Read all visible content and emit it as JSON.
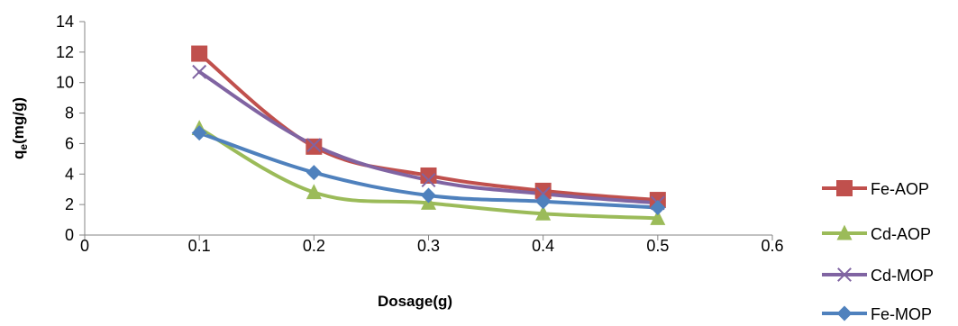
{
  "chart_data": {
    "type": "line",
    "title": "",
    "xlabel": "Dosage(g)",
    "ylabel_main": "q",
    "ylabel_sub": "e",
    "ylabel_rest": "(mg/g)",
    "xlim": [
      0,
      0.6
    ],
    "ylim": [
      0,
      14
    ],
    "x_ticks": [
      0,
      0.1,
      0.2,
      0.3,
      0.4,
      0.5,
      0.6
    ],
    "x_tick_labels": [
      "0",
      "0.1",
      "0.2",
      "0.3",
      "0.4",
      "0.5",
      "0.6"
    ],
    "y_ticks": [
      0,
      2,
      4,
      6,
      8,
      10,
      12,
      14
    ],
    "y_tick_labels": [
      "0",
      "2",
      "4",
      "6",
      "8",
      "10",
      "12",
      "14"
    ],
    "grid": false,
    "legend_position": "right",
    "x": [
      0.1,
      0.2,
      0.3,
      0.4,
      0.5
    ],
    "series": [
      {
        "name": "Fe-AOP",
        "values": [
          11.9,
          5.8,
          3.9,
          2.9,
          2.3
        ],
        "color": "#C0504D",
        "marker": "square"
      },
      {
        "name": "Cd-AOP",
        "values": [
          7.0,
          2.8,
          2.1,
          1.4,
          1.1
        ],
        "color": "#9BBB59",
        "marker": "triangle"
      },
      {
        "name": "Cd-MOP",
        "values": [
          10.7,
          5.9,
          3.6,
          2.7,
          2.1
        ],
        "color": "#8064A2",
        "marker": "x"
      },
      {
        "name": "Fe-MOP",
        "values": [
          6.7,
          4.1,
          2.6,
          2.2,
          1.8
        ],
        "color": "#4F81BD",
        "marker": "diamond"
      }
    ]
  }
}
